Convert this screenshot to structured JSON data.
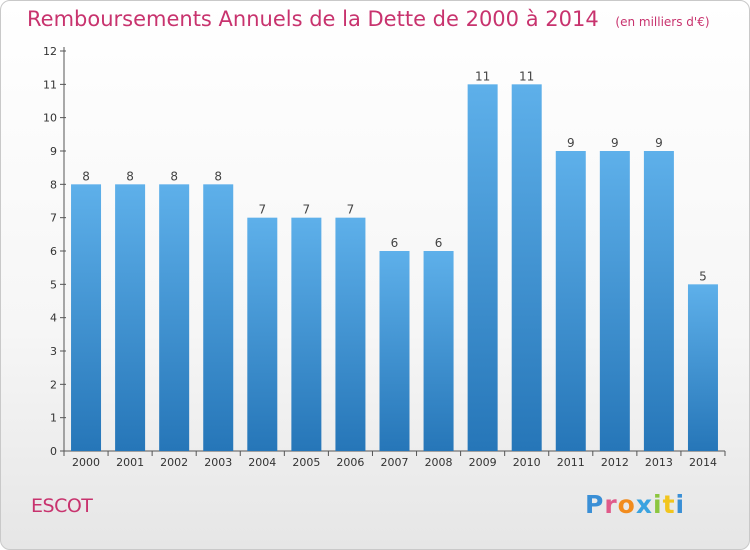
{
  "header": {
    "title": "Remboursements Annuels de la Dette de 2000 à 2014",
    "unit": "(en milliers d'€)"
  },
  "footer": {
    "commune": "ESCOT",
    "logo": [
      "P",
      "r",
      "o",
      "x",
      "i",
      "t",
      "i"
    ]
  },
  "colors": {
    "title": "#c8336e",
    "bar_top": "#5eb0ea",
    "bar_bottom": "#2676b8"
  },
  "chart_data": {
    "type": "bar",
    "title": "Remboursements Annuels de la Dette de 2000 à 2014",
    "subtitle": "(en milliers d'€)",
    "xlabel": "",
    "ylabel": "",
    "categories": [
      "2000",
      "2001",
      "2002",
      "2003",
      "2004",
      "2005",
      "2006",
      "2007",
      "2008",
      "2009",
      "2010",
      "2011",
      "2012",
      "2013",
      "2014"
    ],
    "values": [
      8,
      8,
      8,
      8,
      7,
      7,
      7,
      6,
      6,
      11,
      11,
      9,
      9,
      9,
      5
    ],
    "ylim": [
      0,
      12
    ],
    "yticks": [
      0,
      1,
      2,
      3,
      4,
      5,
      6,
      7,
      8,
      9,
      10,
      11,
      12
    ],
    "grid": false,
    "data_labels": true
  }
}
